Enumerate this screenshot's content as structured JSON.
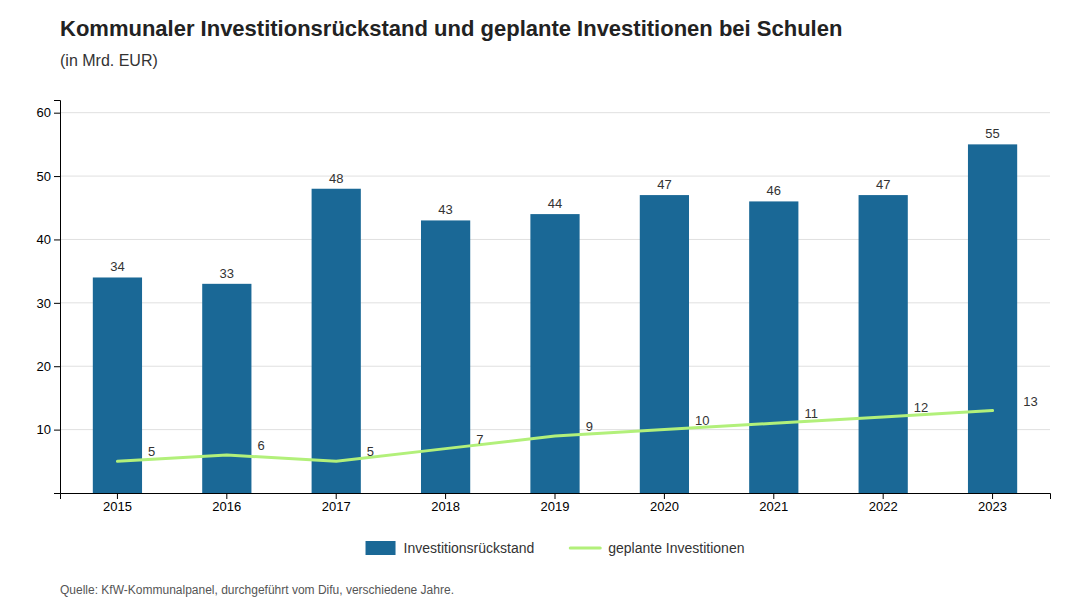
{
  "chart_data": {
    "type": "bar",
    "title": "Kommunaler Investitionsrückstand und geplante Investitionen bei Schulen",
    "subtitle": "(in Mrd. EUR)",
    "annotations": [
      "Quelle: KfW-Kommunalpanel, durchgeführt vom Difu, verschiedene Jahre."
    ],
    "categories": [
      "2015",
      "2016",
      "2017",
      "2018",
      "2019",
      "2020",
      "2021",
      "2022",
      "2023"
    ],
    "series": [
      {
        "name": "Investitionsrückstand",
        "type": "bar",
        "color": "#1a6896",
        "values": [
          34,
          33,
          48,
          43,
          44,
          47,
          46,
          47,
          55
        ]
      },
      {
        "name": "geplante Investitionen",
        "type": "line",
        "color": "#b2f07a",
        "values": [
          5,
          6,
          5,
          7,
          9,
          10,
          11,
          12,
          13
        ]
      }
    ],
    "ylim": [
      0,
      62
    ],
    "yticks": [
      10,
      20,
      30,
      40,
      50,
      60
    ],
    "grid": true,
    "legend": "bottom",
    "data_labels": true
  }
}
